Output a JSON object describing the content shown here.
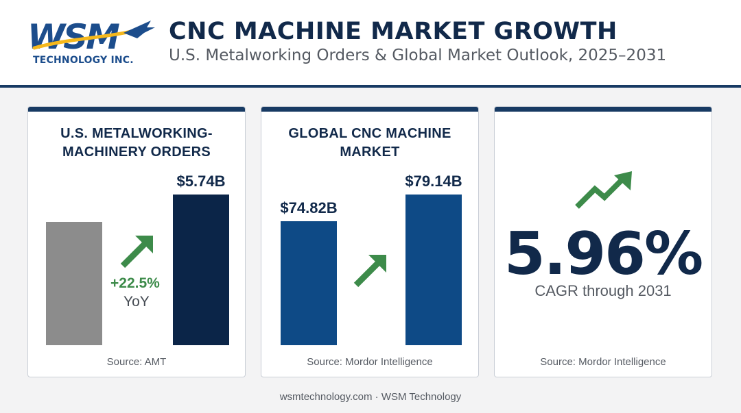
{
  "header": {
    "logo_word": "WSM",
    "logo_sub": "TECHNOLOGY INC.",
    "title": "CNC MACHINE MARKET GROWTH",
    "subtitle": "U.S. Metalworking Orders & Global Market Outlook, 2025–2031"
  },
  "cards": [
    {
      "title_lines": [
        "U.S. METALWORKING-",
        "MACHINERY ORDERS"
      ],
      "bar_labels": [
        "",
        "$5.74B"
      ],
      "yoy_pct": "+22.5%",
      "yoy_label": "YoY",
      "source": "Source: AMT"
    },
    {
      "title_lines": [
        "GLOBAL CNC MACHINE",
        "MARKET"
      ],
      "bar_labels": [
        "$74.82B",
        "$79.14B"
      ],
      "source": "Source: Mordor Intelligence"
    },
    {
      "big_value": "5.96%",
      "big_caption": "CAGR through 2031",
      "source": "Source: Mordor Intelligence"
    }
  ],
  "footer": "wsmtechnology.com · WSM Technology",
  "colors": {
    "navy": "#11294a",
    "blue_bar": "#0e4a86",
    "dark_bar": "#0b2548",
    "gray_bar": "#8c8c8c",
    "green": "#3d8b4a",
    "gold": "#f5b81c"
  },
  "chart_data": [
    {
      "type": "bar",
      "title": "U.S. METALWORKING-MACHINERY ORDERS",
      "categories": [
        "",
        ""
      ],
      "values": [
        4.685,
        5.74
      ],
      "data_labels": [
        "",
        "$5.74B"
      ],
      "annotation": "+22.5% YoY",
      "ylim": [
        0,
        5.74
      ],
      "grid": false
    },
    {
      "type": "bar",
      "title": "GLOBAL CNC MACHINE MARKET",
      "categories": [
        "",
        ""
      ],
      "values": [
        74.82,
        79.14
      ],
      "data_labels": [
        "$74.82B",
        "$79.14B"
      ],
      "ylim": [
        0,
        79.14
      ],
      "grid": false
    }
  ]
}
